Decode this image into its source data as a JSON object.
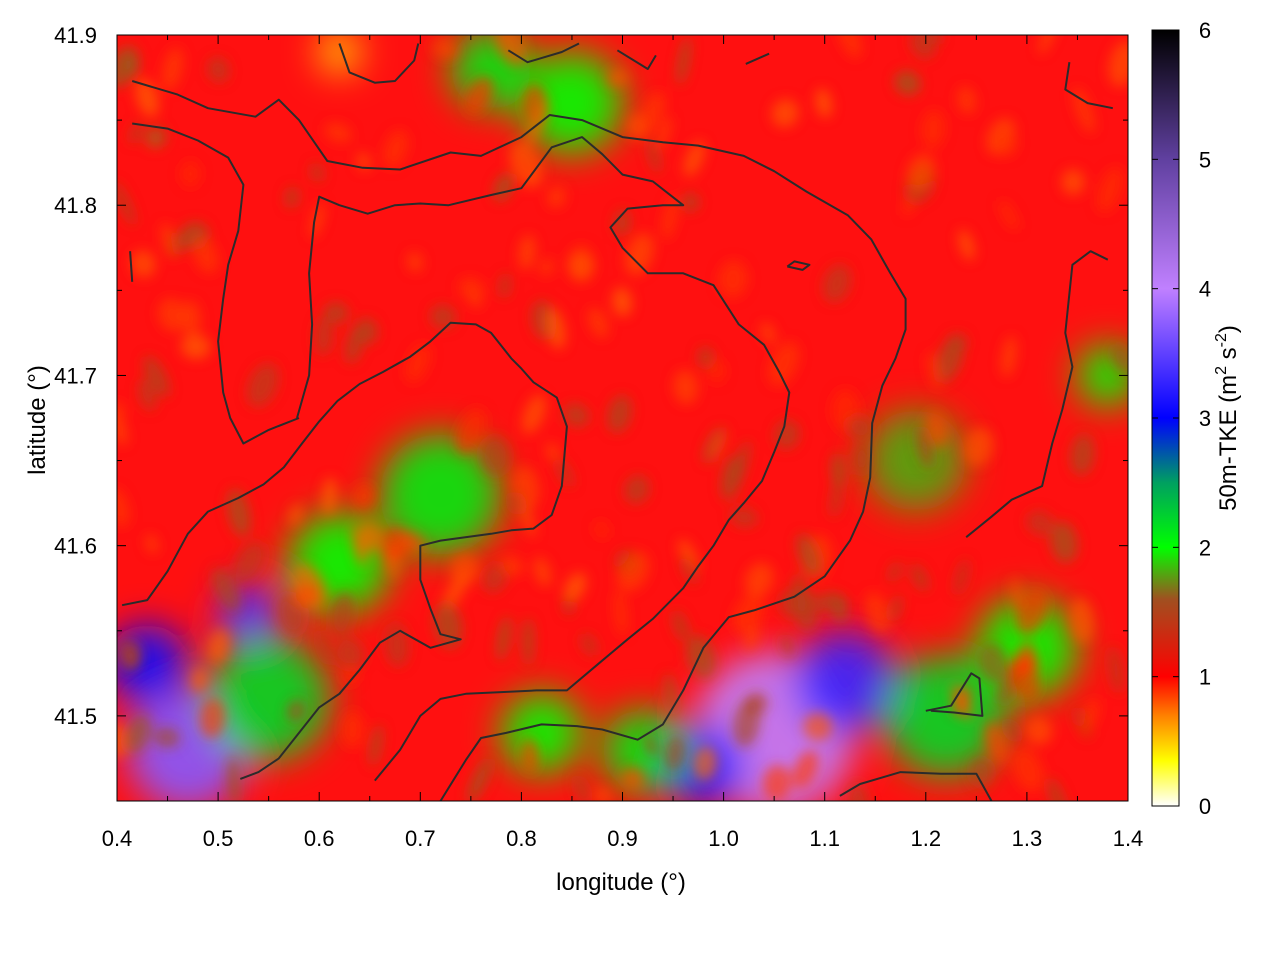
{
  "chart_data": {
    "type": "heatmap",
    "xlabel": "longitude (°)",
    "ylabel": "latitude (°)",
    "xlim": [
      0.4,
      1.4
    ],
    "ylim": [
      41.45,
      41.9
    ],
    "x_ticks": [
      "0.4",
      "0.5",
      "0.6",
      "0.7",
      "0.8",
      "0.9",
      "1.0",
      "1.1",
      "1.2",
      "1.3",
      "1.4"
    ],
    "y_ticks": [
      "41.5",
      "41.6",
      "41.7",
      "41.8",
      "41.9"
    ],
    "colorbar": {
      "label": "50m-TKE (m",
      "label_sup1": "2",
      "label_mid": " s",
      "label_sup2": "-2",
      "label_end": ")",
      "min": 0,
      "max": 6,
      "ticks": [
        "0",
        "1",
        "2",
        "3",
        "4",
        "5",
        "6"
      ],
      "stops": [
        {
          "value": 0,
          "color": "#ffffff"
        },
        {
          "value": 0.35,
          "color": "#ffff00"
        },
        {
          "value": 0.7,
          "color": "#ff8000"
        },
        {
          "value": 1.0,
          "color": "#ff0000"
        },
        {
          "value": 1.6,
          "color": "#a05020"
        },
        {
          "value": 2.0,
          "color": "#00ff00"
        },
        {
          "value": 2.5,
          "color": "#00a060"
        },
        {
          "value": 3.0,
          "color": "#0000ff"
        },
        {
          "value": 4.0,
          "color": "#c080ff"
        },
        {
          "value": 5.0,
          "color": "#6040a0"
        },
        {
          "value": 6.0,
          "color": "#000000"
        }
      ]
    },
    "regions": [
      {
        "lon": 0.47,
        "lat": 41.48,
        "value": 3.7,
        "r": 0.06
      },
      {
        "lon": 0.43,
        "lat": 41.53,
        "value": 3.1,
        "r": 0.04
      },
      {
        "lon": 0.53,
        "lat": 41.56,
        "value": 3.4,
        "r": 0.03
      },
      {
        "lon": 1.05,
        "lat": 41.49,
        "value": 4.0,
        "r": 0.08
      },
      {
        "lon": 1.12,
        "lat": 41.52,
        "value": 3.3,
        "r": 0.05
      },
      {
        "lon": 0.98,
        "lat": 41.47,
        "value": 3.2,
        "r": 0.04
      },
      {
        "lon": 0.72,
        "lat": 41.63,
        "value": 2.1,
        "r": 0.06
      },
      {
        "lon": 0.55,
        "lat": 41.51,
        "value": 2.2,
        "r": 0.06
      },
      {
        "lon": 0.62,
        "lat": 41.59,
        "value": 2.0,
        "r": 0.05
      },
      {
        "lon": 1.22,
        "lat": 41.5,
        "value": 2.2,
        "r": 0.06
      },
      {
        "lon": 1.3,
        "lat": 41.54,
        "value": 2.0,
        "r": 0.05
      },
      {
        "lon": 0.85,
        "lat": 41.86,
        "value": 2.0,
        "r": 0.05
      },
      {
        "lon": 0.77,
        "lat": 41.88,
        "value": 2.1,
        "r": 0.04
      },
      {
        "lon": 0.92,
        "lat": 41.48,
        "value": 2.1,
        "r": 0.04
      },
      {
        "lon": 0.82,
        "lat": 41.49,
        "value": 2.0,
        "r": 0.04
      },
      {
        "lon": 1.38,
        "lat": 41.7,
        "value": 2.0,
        "r": 0.03
      },
      {
        "lon": 0.62,
        "lat": 41.89,
        "value": 0.4,
        "r": 0.02
      },
      {
        "lon": 1.19,
        "lat": 41.65,
        "value": 1.8,
        "r": 0.05
      }
    ],
    "contours": [
      [
        [
          0.415,
          41.873
        ],
        [
          0.46,
          41.865
        ],
        [
          0.49,
          41.857
        ],
        [
          0.537,
          41.852
        ],
        [
          0.56,
          41.862
        ],
        [
          0.58,
          41.85
        ],
        [
          0.608,
          41.826
        ],
        [
          0.643,
          41.822
        ],
        [
          0.68,
          41.821
        ],
        [
          0.73,
          41.831
        ],
        [
          0.76,
          41.829
        ],
        [
          0.8,
          41.84
        ],
        [
          0.828,
          41.853
        ],
        [
          0.86,
          41.85
        ],
        [
          0.9,
          41.84
        ],
        [
          0.94,
          41.837
        ],
        [
          0.975,
          41.835
        ],
        [
          1.02,
          41.829
        ],
        [
          1.05,
          41.82
        ],
        [
          1.082,
          41.808
        ],
        [
          1.123,
          41.794
        ],
        [
          1.146,
          41.78
        ],
        [
          1.165,
          41.76
        ],
        [
          1.18,
          41.745
        ],
        [
          1.18,
          41.727
        ],
        [
          1.17,
          41.71
        ],
        [
          1.157,
          41.694
        ],
        [
          1.147,
          41.672
        ],
        [
          1.145,
          41.64
        ],
        [
          1.138,
          41.62
        ],
        [
          1.125,
          41.603
        ],
        [
          1.1,
          41.582
        ],
        [
          1.07,
          41.57
        ],
        [
          1.03,
          41.562
        ],
        [
          1.005,
          41.558
        ],
        [
          0.98,
          41.54
        ],
        [
          0.96,
          41.515
        ],
        [
          0.94,
          41.495
        ],
        [
          0.915,
          41.486
        ],
        [
          0.88,
          41.492
        ],
        [
          0.855,
          41.494
        ],
        [
          0.82,
          41.495
        ],
        [
          0.785,
          41.49
        ],
        [
          0.76,
          41.487
        ],
        [
          0.745,
          41.474
        ],
        [
          0.72,
          41.45
        ]
      ],
      [
        [
          0.415,
          41.848
        ],
        [
          0.45,
          41.845
        ],
        [
          0.48,
          41.838
        ],
        [
          0.51,
          41.828
        ],
        [
          0.525,
          41.812
        ],
        [
          0.52,
          41.785
        ],
        [
          0.51,
          41.765
        ],
        [
          0.505,
          41.745
        ],
        [
          0.5,
          41.72
        ],
        [
          0.505,
          41.69
        ],
        [
          0.512,
          41.675
        ],
        [
          0.525,
          41.66
        ],
        [
          0.55,
          41.668
        ],
        [
          0.58,
          41.675
        ]
      ],
      [
        [
          0.578,
          41.675
        ],
        [
          0.59,
          41.7
        ],
        [
          0.593,
          41.73
        ],
        [
          0.59,
          41.76
        ],
        [
          0.595,
          41.79
        ],
        [
          0.6,
          41.805
        ],
        [
          0.62,
          41.8
        ],
        [
          0.648,
          41.795
        ],
        [
          0.675,
          41.8
        ],
        [
          0.7,
          41.801
        ],
        [
          0.728,
          41.8
        ],
        [
          0.77,
          41.806
        ],
        [
          0.8,
          41.81
        ],
        [
          0.83,
          41.834
        ],
        [
          0.86,
          41.84
        ],
        [
          0.88,
          41.83
        ],
        [
          0.9,
          41.818
        ],
        [
          0.93,
          41.814
        ],
        [
          0.96,
          41.8
        ],
        [
          0.94,
          41.8
        ],
        [
          0.905,
          41.798
        ],
        [
          0.888,
          41.787
        ],
        [
          0.9,
          41.775
        ],
        [
          0.925,
          41.76
        ],
        [
          0.96,
          41.76
        ],
        [
          0.99,
          41.753
        ],
        [
          1.015,
          41.73
        ],
        [
          1.04,
          41.718
        ],
        [
          1.055,
          41.702
        ],
        [
          1.065,
          41.69
        ],
        [
          1.06,
          41.67
        ],
        [
          1.05,
          41.655
        ],
        [
          1.038,
          41.638
        ],
        [
          1.02,
          41.625
        ],
        [
          1.005,
          41.615
        ],
        [
          0.99,
          41.6
        ],
        [
          0.975,
          41.588
        ],
        [
          0.96,
          41.575
        ],
        [
          0.93,
          41.557
        ],
        [
          0.905,
          41.545
        ],
        [
          0.875,
          41.53
        ],
        [
          0.845,
          41.515
        ],
        [
          0.815,
          41.515
        ],
        [
          0.78,
          41.514
        ],
        [
          0.745,
          41.513
        ],
        [
          0.72,
          41.51
        ],
        [
          0.7,
          41.5
        ],
        [
          0.68,
          41.48
        ],
        [
          0.655,
          41.462
        ]
      ],
      [
        [
          0.405,
          41.565
        ],
        [
          0.43,
          41.568
        ],
        [
          0.45,
          41.585
        ],
        [
          0.47,
          41.607
        ],
        [
          0.49,
          41.62
        ],
        [
          0.52,
          41.628
        ],
        [
          0.545,
          41.636
        ],
        [
          0.565,
          41.646
        ],
        [
          0.583,
          41.66
        ],
        [
          0.6,
          41.673
        ],
        [
          0.618,
          41.685
        ],
        [
          0.64,
          41.695
        ],
        [
          0.663,
          41.702
        ],
        [
          0.69,
          41.711
        ],
        [
          0.71,
          41.72
        ],
        [
          0.73,
          41.731
        ],
        [
          0.755,
          41.73
        ],
        [
          0.77,
          41.725
        ],
        [
          0.79,
          41.71
        ],
        [
          0.8,
          41.704
        ],
        [
          0.812,
          41.696
        ],
        [
          0.835,
          41.687
        ],
        [
          0.845,
          41.67
        ],
        [
          0.84,
          41.635
        ],
        [
          0.83,
          41.618
        ],
        [
          0.812,
          41.61
        ],
        [
          0.79,
          41.609
        ],
        [
          0.77,
          41.607
        ],
        [
          0.72,
          41.603
        ],
        [
          0.7,
          41.6
        ],
        [
          0.7,
          41.58
        ],
        [
          0.71,
          41.563
        ],
        [
          0.72,
          41.548
        ],
        [
          0.74,
          41.545
        ],
        [
          0.71,
          41.54
        ],
        [
          0.68,
          41.55
        ],
        [
          0.66,
          41.543
        ],
        [
          0.64,
          41.527
        ],
        [
          0.62,
          41.513
        ],
        [
          0.6,
          41.505
        ],
        [
          0.58,
          41.49
        ],
        [
          0.56,
          41.475
        ],
        [
          0.54,
          41.467
        ],
        [
          0.522,
          41.463
        ]
      ],
      [
        [
          0.413,
          41.773
        ],
        [
          0.415,
          41.755
        ]
      ],
      [
        [
          0.62,
          41.895
        ],
        [
          0.63,
          41.878
        ],
        [
          0.655,
          41.872
        ],
        [
          0.675,
          41.873
        ],
        [
          0.694,
          41.885
        ],
        [
          0.698,
          41.895
        ]
      ],
      [
        [
          0.787,
          41.891
        ],
        [
          0.806,
          41.884
        ],
        [
          0.84,
          41.89
        ],
        [
          0.857,
          41.895
        ]
      ],
      [
        [
          0.895,
          41.891
        ],
        [
          0.925,
          41.88
        ],
        [
          0.933,
          41.888
        ]
      ],
      [
        [
          1.022,
          41.883
        ],
        [
          1.045,
          41.889
        ]
      ],
      [
        [
          1.342,
          41.884
        ],
        [
          1.338,
          41.868
        ],
        [
          1.36,
          41.86
        ],
        [
          1.385,
          41.857
        ]
      ],
      [
        [
          1.38,
          41.768
        ],
        [
          1.363,
          41.773
        ],
        [
          1.345,
          41.765
        ],
        [
          1.338,
          41.725
        ],
        [
          1.345,
          41.705
        ],
        [
          1.335,
          41.68
        ],
        [
          1.325,
          41.66
        ],
        [
          1.315,
          41.635
        ],
        [
          1.285,
          41.627
        ],
        [
          1.265,
          41.617
        ],
        [
          1.24,
          41.605
        ]
      ],
      [
        [
          1.2,
          41.503
        ],
        [
          1.225,
          41.506
        ],
        [
          1.245,
          41.525
        ],
        [
          1.253,
          41.522
        ],
        [
          1.256,
          41.5
        ],
        [
          1.228,
          41.502
        ],
        [
          1.205,
          41.503
        ]
      ],
      [
        [
          1.115,
          41.453
        ],
        [
          1.135,
          41.46
        ],
        [
          1.175,
          41.467
        ],
        [
          1.215,
          41.466
        ],
        [
          1.25,
          41.466
        ],
        [
          1.265,
          41.45
        ]
      ],
      [
        [
          1.063,
          41.764
        ],
        [
          1.078,
          41.762
        ],
        [
          1.085,
          41.765
        ],
        [
          1.07,
          41.767
        ],
        [
          1.063,
          41.764
        ]
      ]
    ]
  }
}
